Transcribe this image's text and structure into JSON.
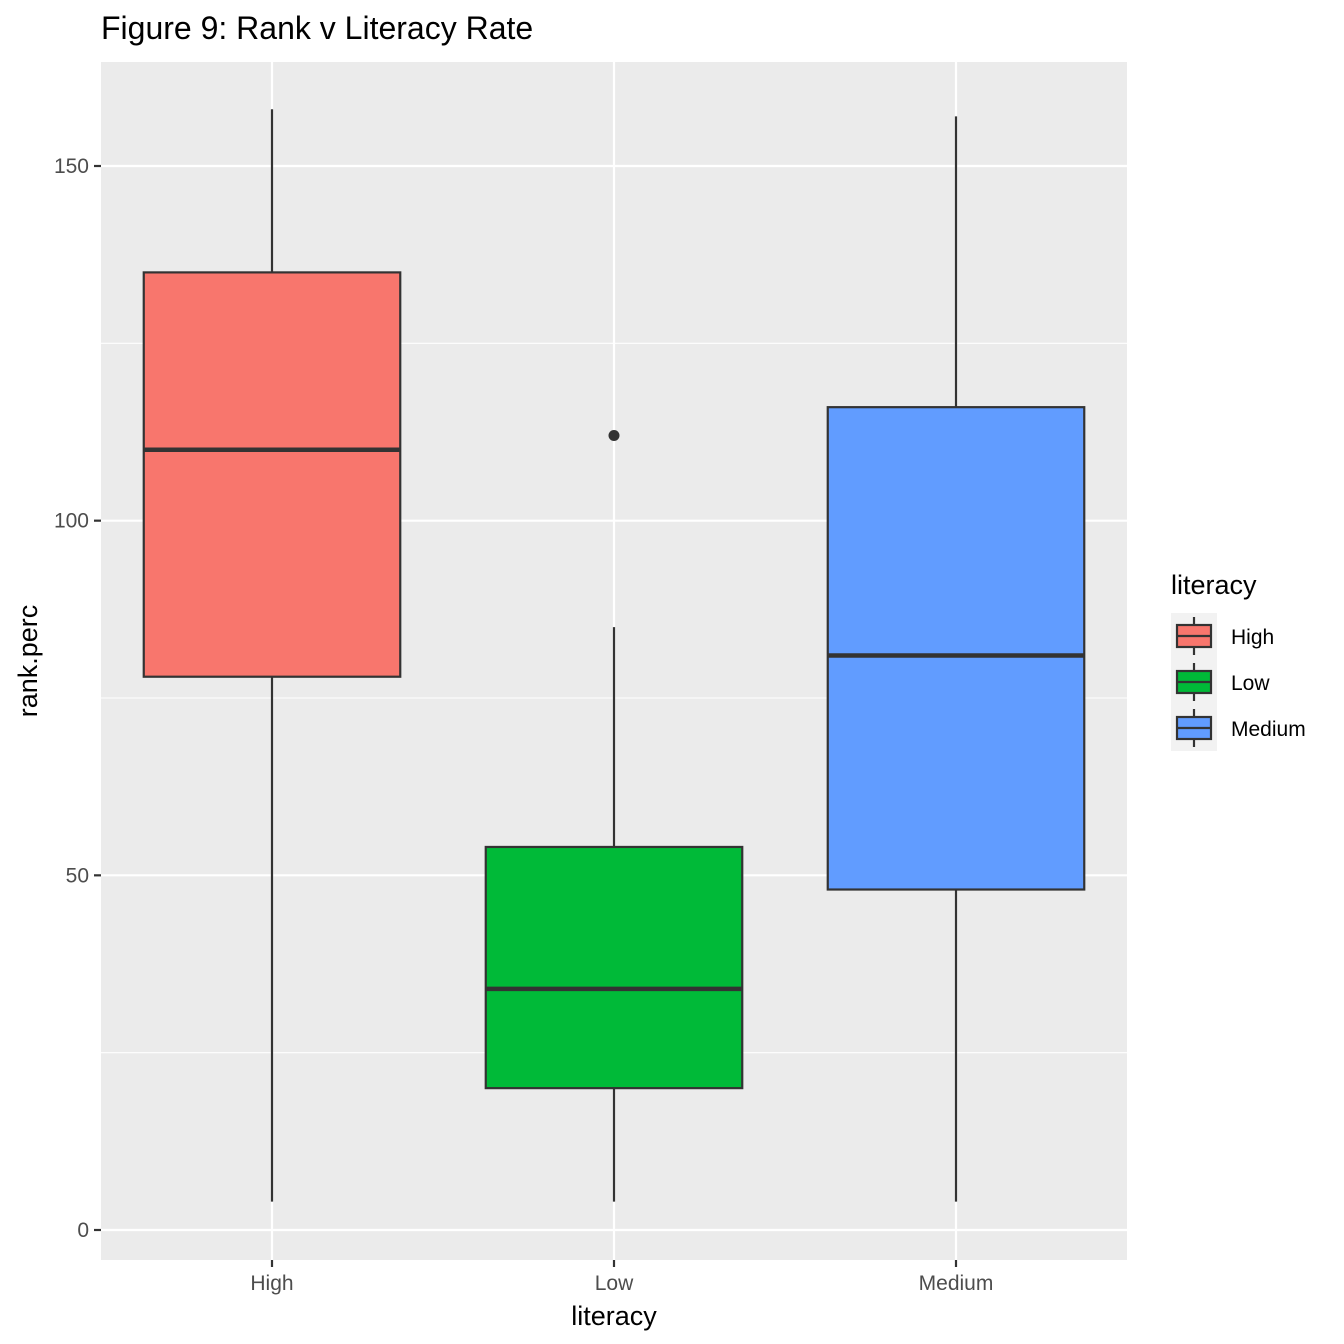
{
  "chart_data": {
    "type": "boxplot",
    "title": "Figure 9: Rank v Literacy Rate",
    "xlabel": "literacy",
    "ylabel": "rank.perc",
    "ylim": [
      -4,
      165
    ],
    "yticks": [
      0,
      50,
      100,
      150
    ],
    "ytick_labels": [
      "0",
      "50",
      "100",
      "150"
    ],
    "categories": [
      "High",
      "Low",
      "Medium"
    ],
    "boxes": [
      {
        "category": "High",
        "whisker_low": 4,
        "q1": 78,
        "median": 110,
        "q3": 135,
        "whisker_high": 158,
        "outliers": []
      },
      {
        "category": "Low",
        "whisker_low": 4,
        "q1": 20,
        "median": 34,
        "q3": 54,
        "whisker_high": 85,
        "outliers": [
          112
        ]
      },
      {
        "category": "Medium",
        "whisker_low": 4,
        "q1": 48,
        "median": 81,
        "q3": 116,
        "whisker_high": 157,
        "outliers": []
      }
    ],
    "colors": {
      "High": "#F8766D",
      "Low": "#00BA38",
      "Medium": "#619CFF"
    },
    "grid": true,
    "panel_background": "#EBEBEB",
    "legend": {
      "title": "literacy",
      "entries": [
        "High",
        "Low",
        "Medium"
      ],
      "placement": "right"
    }
  }
}
